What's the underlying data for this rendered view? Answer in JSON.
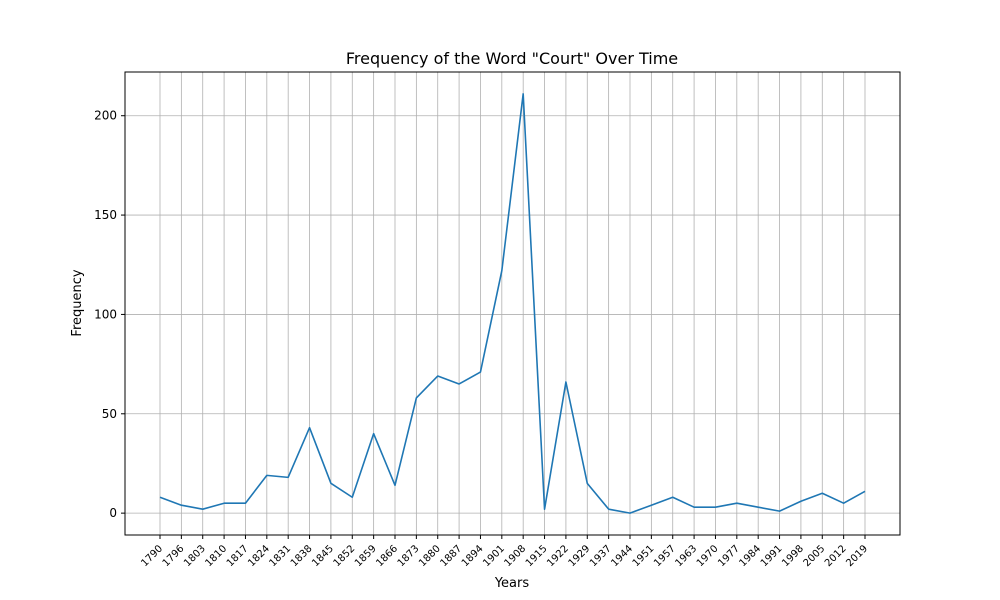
{
  "chart_data": {
    "type": "line",
    "title": "Frequency of the Word \"Court\" Over Time",
    "xlabel": "Years",
    "ylabel": "Frequency",
    "categories": [
      "1790",
      "1796",
      "1803",
      "1810",
      "1817",
      "1824",
      "1831",
      "1838",
      "1845",
      "1852",
      "1859",
      "1866",
      "1873",
      "1880",
      "1887",
      "1894",
      "1901",
      "1908",
      "1915",
      "1922",
      "1929",
      "1937",
      "1944",
      "1951",
      "1957",
      "1963",
      "1970",
      "1977",
      "1984",
      "1991",
      "1998",
      "2005",
      "2012",
      "2019"
    ],
    "series": [
      {
        "values": [
          8,
          4,
          2,
          5,
          5,
          19,
          18,
          43,
          15,
          8,
          40,
          14,
          58,
          69,
          65,
          71,
          122,
          211,
          2,
          66,
          15,
          2,
          0,
          4,
          8,
          3,
          3,
          5,
          3,
          1,
          6,
          10,
          5,
          11
        ]
      }
    ],
    "ylim": [
      -11,
      222
    ],
    "yticks": [
      0,
      50,
      100,
      150,
      200
    ],
    "grid": true,
    "color": "#1f77b4"
  }
}
